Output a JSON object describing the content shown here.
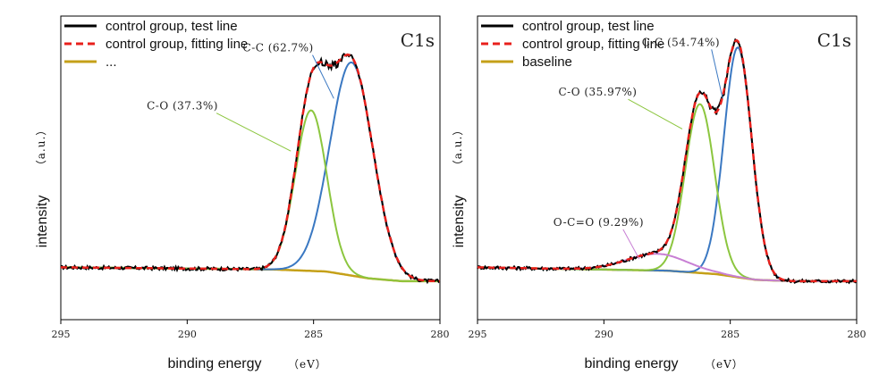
{
  "chart_data": [
    {
      "type": "line",
      "title": "C1s",
      "xlabel": "binding energy",
      "xlabel_unit": "（eV）",
      "ylabel": "intensity",
      "ylabel_unit": "（a.u.）",
      "xlim": [
        295,
        280
      ],
      "xticks": [
        295,
        290,
        285,
        280
      ],
      "legend": [
        {
          "label": "control group, test line",
          "color": "#000000",
          "style": "solid"
        },
        {
          "label": "control group, fitting line",
          "color": "#e8201c",
          "style": "dashed"
        },
        {
          "label": "...",
          "color": "#c5a018",
          "style": "solid"
        }
      ],
      "background": {
        "x": [
          295,
          288,
          286.5,
          284.5,
          282.8,
          281.5,
          280
        ],
        "y": [
          0.06,
          0.054,
          0.052,
          0.045,
          0.02,
          0.01,
          0.01
        ]
      },
      "peaks": [
        {
          "name": "C-C",
          "center": 283.5,
          "height": 0.77,
          "width": 0.85,
          "color": "#3a78c2",
          "label": "C-C (62.7%)",
          "label_at": [
            287.8,
            0.84
          ],
          "arrow_to": [
            284.2,
            0.67
          ]
        },
        {
          "name": "C-O",
          "center": 285.1,
          "height": 0.58,
          "width": 0.62,
          "color": "#8cc63f",
          "label": "C-O (37.3%)",
          "label_at": [
            291.6,
            0.63
          ],
          "arrow_to": [
            285.9,
            0.48
          ]
        }
      ],
      "annotation_position": "top-right"
    },
    {
      "type": "line",
      "title": "C1s",
      "xlabel": "binding energy",
      "xlabel_unit": "（eV）",
      "ylabel": "intensity",
      "ylabel_unit": "（a.u.）",
      "xlim": [
        295,
        280
      ],
      "xticks": [
        295,
        290,
        285,
        280
      ],
      "legend": [
        {
          "label": "control group, test line",
          "color": "#000000",
          "style": "solid"
        },
        {
          "label": "control group, fitting line",
          "color": "#e8201c",
          "style": "dashed"
        },
        {
          "label": "baseline",
          "color": "#c5a018",
          "style": "solid"
        }
      ],
      "background": {
        "x": [
          295,
          290,
          287.5,
          285.5,
          284.0,
          282.5,
          280
        ],
        "y": [
          0.06,
          0.052,
          0.048,
          0.035,
          0.015,
          0.01,
          0.01
        ]
      },
      "peaks": [
        {
          "name": "C-C",
          "center": 284.7,
          "height": 0.83,
          "width": 0.55,
          "color": "#3a78c2",
          "label": "C-C (54.74%)",
          "label_at": [
            288.5,
            0.86
          ],
          "arrow_to": [
            285.3,
            0.67
          ]
        },
        {
          "name": "C-O",
          "center": 286.2,
          "height": 0.61,
          "width": 0.58,
          "color": "#8cc63f",
          "label": "C-O (35.97%)",
          "label_at": [
            291.8,
            0.68
          ],
          "arrow_to": [
            286.9,
            0.56
          ]
        },
        {
          "name": "O-C=O",
          "center": 287.9,
          "height": 0.06,
          "width": 1.2,
          "color": "#c87fd4",
          "label": "O-C=O (9.29%)",
          "label_at": [
            292.0,
            0.21
          ],
          "arrow_to": [
            288.6,
            0.09
          ]
        }
      ],
      "annotation_position": "top-right"
    }
  ]
}
